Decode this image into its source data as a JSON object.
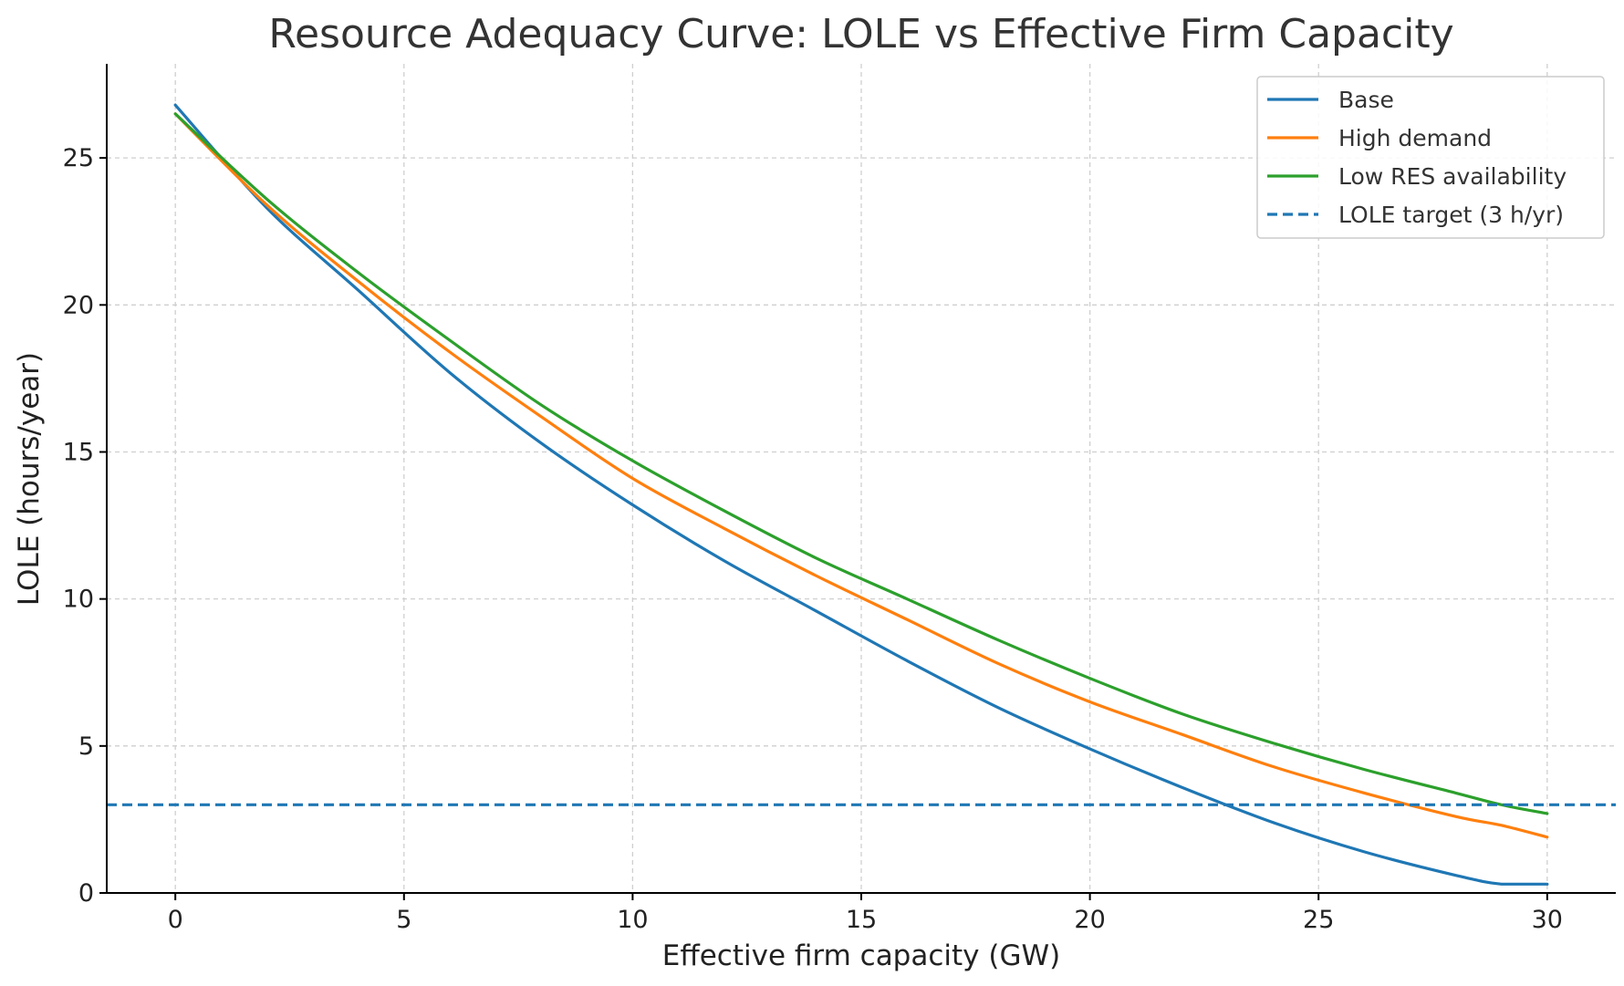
{
  "chart_data": {
    "type": "line",
    "title": "Resource Adequacy Curve: LOLE vs Effective Firm Capacity",
    "xlabel": "Effective firm capacity (GW)",
    "ylabel": "LOLE (hours/year)",
    "xlim": [
      -1.5,
      31.5
    ],
    "ylim": [
      0,
      28.2
    ],
    "xticks": [
      0,
      5,
      10,
      15,
      20,
      25,
      30
    ],
    "yticks": [
      0,
      5,
      10,
      15,
      20,
      25
    ],
    "grid": true,
    "legend_position": "top-right",
    "x": [
      0,
      2,
      4,
      6,
      8,
      10,
      12,
      14,
      16,
      18,
      20,
      22,
      24,
      26,
      28,
      29,
      30
    ],
    "series": [
      {
        "name": "Base",
        "color": "#1f77b4",
        "style": "solid",
        "values": [
          26.8,
          23.3,
          20.5,
          17.7,
          15.3,
          13.2,
          11.3,
          9.6,
          7.9,
          6.3,
          4.9,
          3.6,
          2.4,
          1.4,
          0.6,
          0.3,
          0.3
        ]
      },
      {
        "name": "High demand",
        "color": "#ff7f0e",
        "style": "solid",
        "values": [
          26.5,
          23.4,
          20.8,
          18.4,
          16.2,
          14.1,
          12.4,
          10.8,
          9.3,
          7.8,
          6.5,
          5.4,
          4.3,
          3.4,
          2.6,
          2.3,
          1.9
        ]
      },
      {
        "name": "Low RES availability",
        "color": "#2ca02c",
        "style": "solid",
        "values": [
          26.5,
          23.6,
          21.1,
          18.8,
          16.6,
          14.7,
          13.0,
          11.4,
          10.0,
          8.6,
          7.3,
          6.1,
          5.1,
          4.2,
          3.4,
          3.0,
          2.7
        ]
      },
      {
        "name": "LOLE target (3 h/yr)",
        "color": "#1f77b4",
        "style": "dashed",
        "constant": 3
      }
    ]
  }
}
